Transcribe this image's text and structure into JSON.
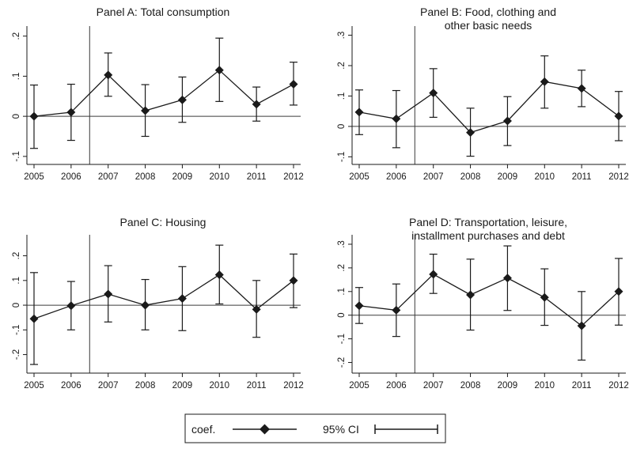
{
  "chart_data": [
    {
      "type": "line",
      "title": "Panel A: Total consumption",
      "categories": [
        "2005",
        "2006",
        "2007",
        "2008",
        "2009",
        "2010",
        "2011",
        "2012"
      ],
      "coef": [
        0.0,
        0.01,
        0.103,
        0.014,
        0.041,
        0.115,
        0.03,
        0.08
      ],
      "ci_low": [
        -0.08,
        -0.06,
        0.05,
        -0.05,
        -0.015,
        0.037,
        -0.012,
        0.028
      ],
      "ci_high": [
        0.078,
        0.08,
        0.158,
        0.079,
        0.098,
        0.195,
        0.073,
        0.135
      ],
      "yticks": [
        -0.1,
        0.0,
        0.1,
        0.2
      ],
      "ytick_labels": [
        "-.1",
        "0",
        ".1",
        ".2"
      ],
      "ylim": [
        -0.12,
        0.225
      ],
      "ref_line_y": 0,
      "vline_between": [
        "2006",
        "2007"
      ]
    },
    {
      "type": "line",
      "title": "Panel B: Food, clothing and other basic needs",
      "title_lines": [
        "Panel B: Food, clothing and",
        "other basic needs"
      ],
      "categories": [
        "2005",
        "2006",
        "2007",
        "2008",
        "2009",
        "2010",
        "2011",
        "2012"
      ],
      "coef": [
        0.047,
        0.025,
        0.11,
        -0.02,
        0.018,
        0.147,
        0.125,
        0.034
      ],
      "ci_low": [
        -0.027,
        -0.07,
        0.03,
        -0.098,
        -0.063,
        0.06,
        0.065,
        -0.047
      ],
      "ci_high": [
        0.12,
        0.118,
        0.19,
        0.06,
        0.098,
        0.232,
        0.185,
        0.115
      ],
      "yticks": [
        -0.1,
        0.0,
        0.1,
        0.2,
        0.3
      ],
      "ytick_labels": [
        "-.1",
        "0",
        ".1",
        ".2",
        ".3"
      ],
      "ylim": [
        -0.125,
        0.33
      ],
      "ref_line_y": 0,
      "vline_between": [
        "2006",
        "2007"
      ]
    },
    {
      "type": "line",
      "title": "Panel C: Housing",
      "categories": [
        "2005",
        "2006",
        "2007",
        "2008",
        "2009",
        "2010",
        "2011",
        "2012"
      ],
      "coef": [
        -0.055,
        -0.002,
        0.045,
        0.0,
        0.027,
        0.123,
        -0.017,
        0.1
      ],
      "ci_low": [
        -0.24,
        -0.1,
        -0.068,
        -0.1,
        -0.103,
        0.005,
        -0.13,
        -0.01
      ],
      "ci_high": [
        0.132,
        0.096,
        0.16,
        0.104,
        0.156,
        0.243,
        0.1,
        0.207
      ],
      "yticks": [
        -0.2,
        -0.1,
        0.0,
        0.1,
        0.2
      ],
      "ytick_labels": [
        "-.2",
        "-.1",
        "0",
        ".1",
        ".2"
      ],
      "ylim": [
        -0.275,
        0.285
      ],
      "ref_line_y": 0,
      "vline_between": [
        "2006",
        "2007"
      ]
    },
    {
      "type": "line",
      "title": "Panel D: Transportation, leisure, installment purchases and debt",
      "title_lines": [
        "Panel D: Transportation, leisure,",
        "installment purchases and debt"
      ],
      "categories": [
        "2005",
        "2006",
        "2007",
        "2008",
        "2009",
        "2010",
        "2011",
        "2012"
      ],
      "coef": [
        0.04,
        0.021,
        0.173,
        0.086,
        0.157,
        0.075,
        -0.045,
        0.1
      ],
      "ci_low": [
        -0.035,
        -0.09,
        0.092,
        -0.063,
        0.02,
        -0.043,
        -0.19,
        -0.042
      ],
      "ci_high": [
        0.117,
        0.132,
        0.258,
        0.237,
        0.293,
        0.196,
        0.1,
        0.24
      ],
      "yticks": [
        -0.2,
        -0.1,
        0.0,
        0.1,
        0.2,
        0.3
      ],
      "ytick_labels": [
        "-.2",
        "-.1",
        "0",
        ".1",
        ".2",
        ".3"
      ],
      "ylim": [
        -0.245,
        0.34
      ],
      "ref_line_y": 0,
      "vline_between": [
        "2006",
        "2007"
      ]
    }
  ],
  "legend": {
    "coef_label": "coef.",
    "ci_label": "95% CI"
  },
  "colors": {
    "series": "#1a1a1a",
    "axis": "#1a1a1a",
    "ref_lines": "#3a3a3a",
    "background": "#ffffff"
  }
}
